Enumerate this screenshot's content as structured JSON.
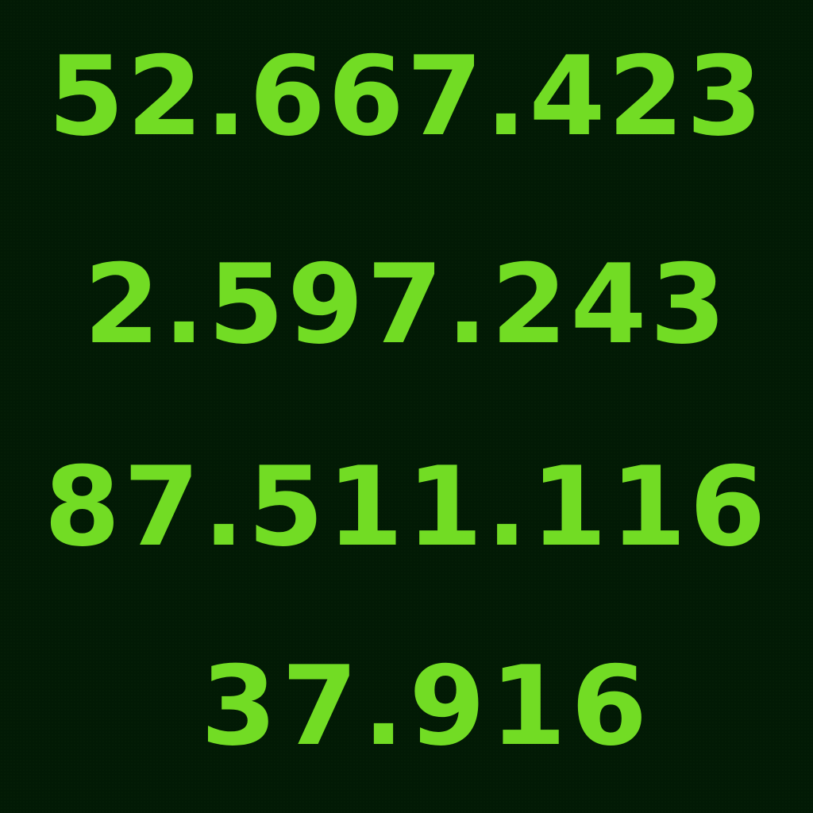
{
  "numbers": [
    "52.667.423",
    "2.597.243",
    "87.511.116",
    "37.916"
  ],
  "colors": {
    "background": "#021a05",
    "text": "#72dc24"
  }
}
